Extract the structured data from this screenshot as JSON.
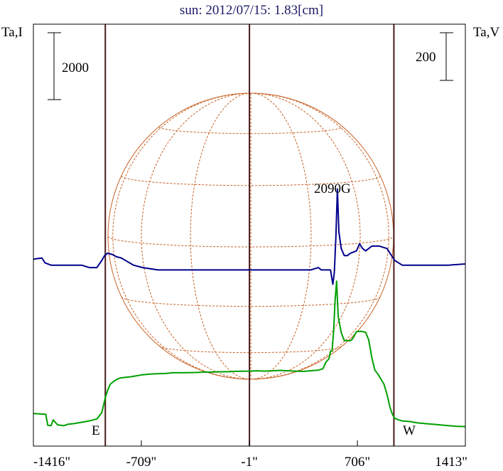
{
  "chart_data": {
    "type": "line",
    "title": "sun: 2012/07/15: 1.83[cm]",
    "ylabel_left": "Ta,I",
    "ylabel_right": "Ta,V",
    "scale_left": "2000",
    "scale_right": "200",
    "annotation": "2090G",
    "limb_labels": {
      "east": "E",
      "west": "W"
    },
    "x_ticks": [
      {
        "value": -1416,
        "label": "-1416\""
      },
      {
        "value": -709,
        "label": "-709\""
      },
      {
        "value": -1,
        "label": "-1\""
      },
      {
        "value": 706,
        "label": "706\""
      },
      {
        "value": 1413,
        "label": "1413\""
      }
    ],
    "xlim": [
      -1416,
      1413
    ],
    "vertical_lines_arcsec": [
      -945,
      -1,
      945
    ],
    "colors": {
      "frame": "#000000",
      "title": "#1a1a66",
      "vertical_lines": "#4a1a1a",
      "grid": "#c86428",
      "stokes_i": "#00a000",
      "stokes_v": "#00008c"
    },
    "series": [
      {
        "name": "Ta,I",
        "color": "#00a000",
        "x": [
          -1416,
          -1335,
          -1322,
          -1300,
          -1286,
          -1276,
          -1257,
          -1215,
          -1190,
          -1150,
          -1100,
          -1050,
          -1000,
          -968,
          -950,
          -945,
          -930,
          -912,
          -890,
          -870,
          -850,
          -820,
          -780,
          -740,
          -700,
          -650,
          -600,
          -550,
          -500,
          -450,
          -400,
          -350,
          -300,
          -250,
          -200,
          -150,
          -100,
          -50,
          -1,
          50,
          100,
          150,
          200,
          250,
          300,
          350,
          400,
          450,
          480,
          500,
          520,
          530,
          540,
          550,
          560,
          570,
          580,
          600,
          620,
          640,
          660,
          670,
          680,
          700,
          730,
          760,
          780,
          800,
          820,
          840,
          860,
          880,
          900,
          920,
          935,
          950,
          970,
          1000,
          1050,
          1100,
          1150,
          1200,
          1250,
          1300,
          1350,
          1413
        ],
        "y": [
          420,
          400,
          70,
          60,
          230,
          175,
          80,
          60,
          100,
          120,
          160,
          200,
          260,
          450,
          800,
          900,
          1110,
          1300,
          1380,
          1440,
          1480,
          1500,
          1520,
          1550,
          1580,
          1600,
          1610,
          1620,
          1640,
          1640,
          1645,
          1650,
          1660,
          1660,
          1670,
          1670,
          1680,
          1685,
          1690,
          1700,
          1690,
          1700,
          1710,
          1700,
          1690,
          1680,
          1700,
          1720,
          1760,
          1960,
          2060,
          2280,
          2300,
          2860,
          3810,
          4380,
          3330,
          2840,
          2600,
          2600,
          2600,
          2630,
          2700,
          2870,
          2880,
          2850,
          2620,
          2100,
          1720,
          1600,
          1450,
          1300,
          1000,
          600,
          400,
          280,
          240,
          200,
          180,
          140,
          120,
          100,
          80,
          60,
          40,
          30
        ]
      },
      {
        "name": "Ta,V",
        "color": "#00008c",
        "x": [
          -1416,
          -1360,
          -1340,
          -1300,
          -1250,
          -1200,
          -1150,
          -1100,
          -1050,
          -1000,
          -968,
          -950,
          -930,
          -900,
          -870,
          -840,
          -800,
          -760,
          -700,
          -600,
          -500,
          -400,
          -300,
          -200,
          -100,
          -1,
          100,
          200,
          300,
          400,
          450,
          470,
          490,
          510,
          530,
          545,
          555,
          565,
          575,
          585,
          600,
          620,
          640,
          660,
          680,
          700,
          720,
          740,
          760,
          780,
          800,
          850,
          900,
          950,
          1000,
          1050,
          1100,
          1200,
          1300,
          1413
        ],
        "y": [
          5,
          10,
          -10,
          -20,
          -20,
          -20,
          -20,
          -20,
          -30,
          -30,
          0,
          20,
          30,
          25,
          15,
          10,
          -5,
          -20,
          -30,
          -40,
          -40,
          -40,
          -40,
          -40,
          -40,
          -40,
          -40,
          -40,
          -40,
          -40,
          -30,
          -40,
          -40,
          -40,
          -40,
          -100,
          -50,
          100,
          300,
          120,
          50,
          20,
          20,
          30,
          35,
          40,
          70,
          50,
          40,
          50,
          60,
          60,
          50,
          0,
          -20,
          -20,
          -20,
          -20,
          -20,
          -15
        ]
      }
    ]
  }
}
